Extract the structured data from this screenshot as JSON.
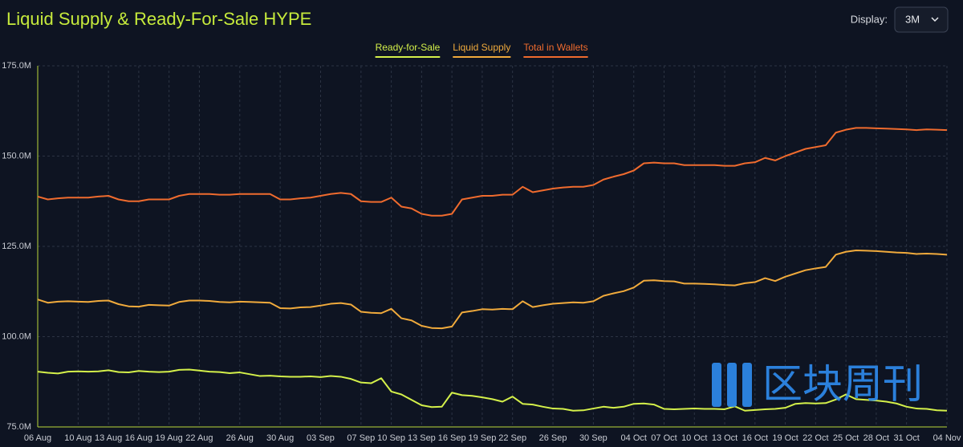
{
  "display_label": "Display:",
  "display_value": "3M",
  "watermark": "区块周刊",
  "chart_data": {
    "type": "line",
    "title": "Liquid Supply & Ready-For-Sale HYPE",
    "categories": [
      "06 Aug",
      null,
      null,
      null,
      "10 Aug",
      null,
      null,
      "13 Aug",
      null,
      null,
      "16 Aug",
      null,
      null,
      "19 Aug",
      null,
      null,
      "22 Aug",
      null,
      null,
      null,
      "26 Aug",
      null,
      null,
      null,
      "30 Aug",
      null,
      null,
      null,
      "03 Sep",
      null,
      null,
      null,
      "07 Sep",
      null,
      null,
      "10 Sep",
      null,
      null,
      "13 Sep",
      null,
      null,
      "16 Sep",
      null,
      null,
      "19 Sep",
      null,
      null,
      "22 Sep",
      null,
      null,
      null,
      "26 Sep",
      null,
      null,
      null,
      "30 Sep",
      null,
      null,
      null,
      "04 Oct",
      null,
      null,
      "07 Oct",
      null,
      null,
      "10 Oct",
      null,
      null,
      "13 Oct",
      null,
      null,
      "16 Oct",
      null,
      null,
      "19 Oct",
      null,
      null,
      "22 Oct",
      null,
      null,
      "25 Oct",
      null,
      null,
      "28 Oct",
      null,
      null,
      "31 Oct",
      null,
      null,
      null,
      "04 Nov"
    ],
    "series": [
      {
        "name": "Ready-for-Sale",
        "color": "#d4f04a",
        "values": [
          90.3,
          90,
          89.8,
          90.3,
          90.4,
          90.3,
          90.4,
          90.7,
          90.2,
          90.1,
          90.5,
          90.3,
          90.2,
          90.3,
          90.8,
          90.9,
          90.6,
          90.3,
          90.2,
          89.9,
          90.1,
          89.6,
          89.1,
          89.2,
          89,
          88.9,
          88.9,
          89,
          88.8,
          89.1,
          88.9,
          88.3,
          87.3,
          87.1,
          88.5,
          84.8,
          84,
          82.5,
          81,
          80.5,
          80.6,
          84.5,
          83.8,
          83.6,
          83.2,
          82.7,
          82,
          83.4,
          81.4,
          81.2,
          80.6,
          80.1,
          80,
          79.5,
          79.6,
          80.1,
          80.6,
          80.3,
          80.6,
          81.4,
          81.5,
          81.2,
          80,
          79.9,
          80,
          80.1,
          80,
          80,
          79.9,
          80.7,
          79.5,
          79.7,
          79.9,
          80,
          80.3,
          81.4,
          81.6,
          81.5,
          81.6,
          82.6,
          84,
          82.7,
          82.5,
          82.3,
          82,
          81.5,
          80.6,
          80.1,
          80,
          79.6,
          79.5
        ]
      },
      {
        "name": "Liquid Supply",
        "color": "#f0aa3c",
        "values": [
          110.3,
          109.4,
          109.7,
          109.8,
          109.7,
          109.6,
          109.9,
          110,
          109,
          108.4,
          108.3,
          108.8,
          108.7,
          108.6,
          109.6,
          110,
          110,
          109.9,
          109.6,
          109.5,
          109.7,
          109.6,
          109.5,
          109.4,
          107.9,
          107.8,
          108.1,
          108.2,
          108.6,
          109.1,
          109.3,
          108.9,
          106.9,
          106.6,
          106.5,
          107.7,
          105.1,
          104.5,
          103,
          102.4,
          102.3,
          102.8,
          106.7,
          107.1,
          107.6,
          107.5,
          107.7,
          107.6,
          109.8,
          108.2,
          108.7,
          109.1,
          109.3,
          109.5,
          109.4,
          109.8,
          111.3,
          112,
          112.6,
          113.6,
          115.5,
          115.6,
          115.4,
          115.3,
          114.7,
          114.7,
          114.6,
          114.5,
          114.3,
          114.2,
          114.8,
          115.1,
          116.2,
          115.4,
          116.6,
          117.5,
          118.4,
          118.9,
          119.3,
          122.7,
          123.5,
          123.9,
          123.8,
          123.7,
          123.5,
          123.3,
          123.2,
          122.9,
          123,
          122.9,
          122.7
        ]
      },
      {
        "name": "Total in Wallets",
        "color": "#ef6b2e",
        "values": [
          138.8,
          138,
          138.3,
          138.5,
          138.5,
          138.5,
          138.8,
          139,
          138,
          137.5,
          137.5,
          138,
          138,
          138,
          139,
          139.5,
          139.5,
          139.5,
          139.3,
          139.3,
          139.5,
          139.5,
          139.5,
          139.5,
          138,
          138,
          138.3,
          138.5,
          139,
          139.5,
          139.8,
          139.5,
          137.5,
          137.3,
          137.3,
          138.5,
          136,
          135.5,
          134,
          133.5,
          133.5,
          134,
          138,
          138.5,
          139,
          139,
          139.3,
          139.3,
          141.5,
          140,
          140.5,
          141,
          141.3,
          141.5,
          141.5,
          142,
          143.5,
          144.3,
          145,
          146,
          148,
          148.2,
          148,
          148,
          147.5,
          147.5,
          147.5,
          147.5,
          147.3,
          147.3,
          148,
          148.3,
          149.5,
          148.8,
          150,
          151,
          152,
          152.5,
          153,
          156.5,
          157.3,
          157.8,
          157.8,
          157.7,
          157.6,
          157.5,
          157.4,
          157.2,
          157.4,
          157.3,
          157.2
        ]
      }
    ],
    "ylim": [
      75,
      175
    ],
    "yticks": [
      {
        "value": 75,
        "label": "75.0M"
      },
      {
        "value": 100,
        "label": "100.0M"
      },
      {
        "value": 125,
        "label": "125.0M"
      },
      {
        "value": 150,
        "label": "150.0M"
      },
      {
        "value": 175,
        "label": "175.0M"
      }
    ],
    "grid": true,
    "legend": "top"
  }
}
